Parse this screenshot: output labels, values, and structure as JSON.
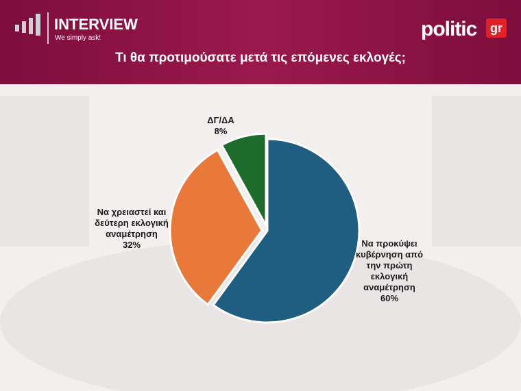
{
  "header": {
    "brand": "INTERVIEW",
    "tagline": "We simply ask!",
    "logo": "politic",
    "logo_suffix": "gr"
  },
  "chart_data": {
    "type": "pie",
    "title": "Τι θα προτιμούσατε μετά τις επόμενες εκλογές;",
    "categories": [
      "Να προκύψει κυβέρνηση από την πρώτη εκλογική αναμέτρηση",
      "Να χρειαστεί και δεύτερη εκλογική αναμέτρηση",
      "ΔΓ/ΔΑ"
    ],
    "values": [
      60,
      32,
      8
    ],
    "value_labels": [
      "60%",
      "32%",
      "8%"
    ],
    "colors": [
      "#1f5e80",
      "#e8793a",
      "#1f6b2c"
    ]
  }
}
